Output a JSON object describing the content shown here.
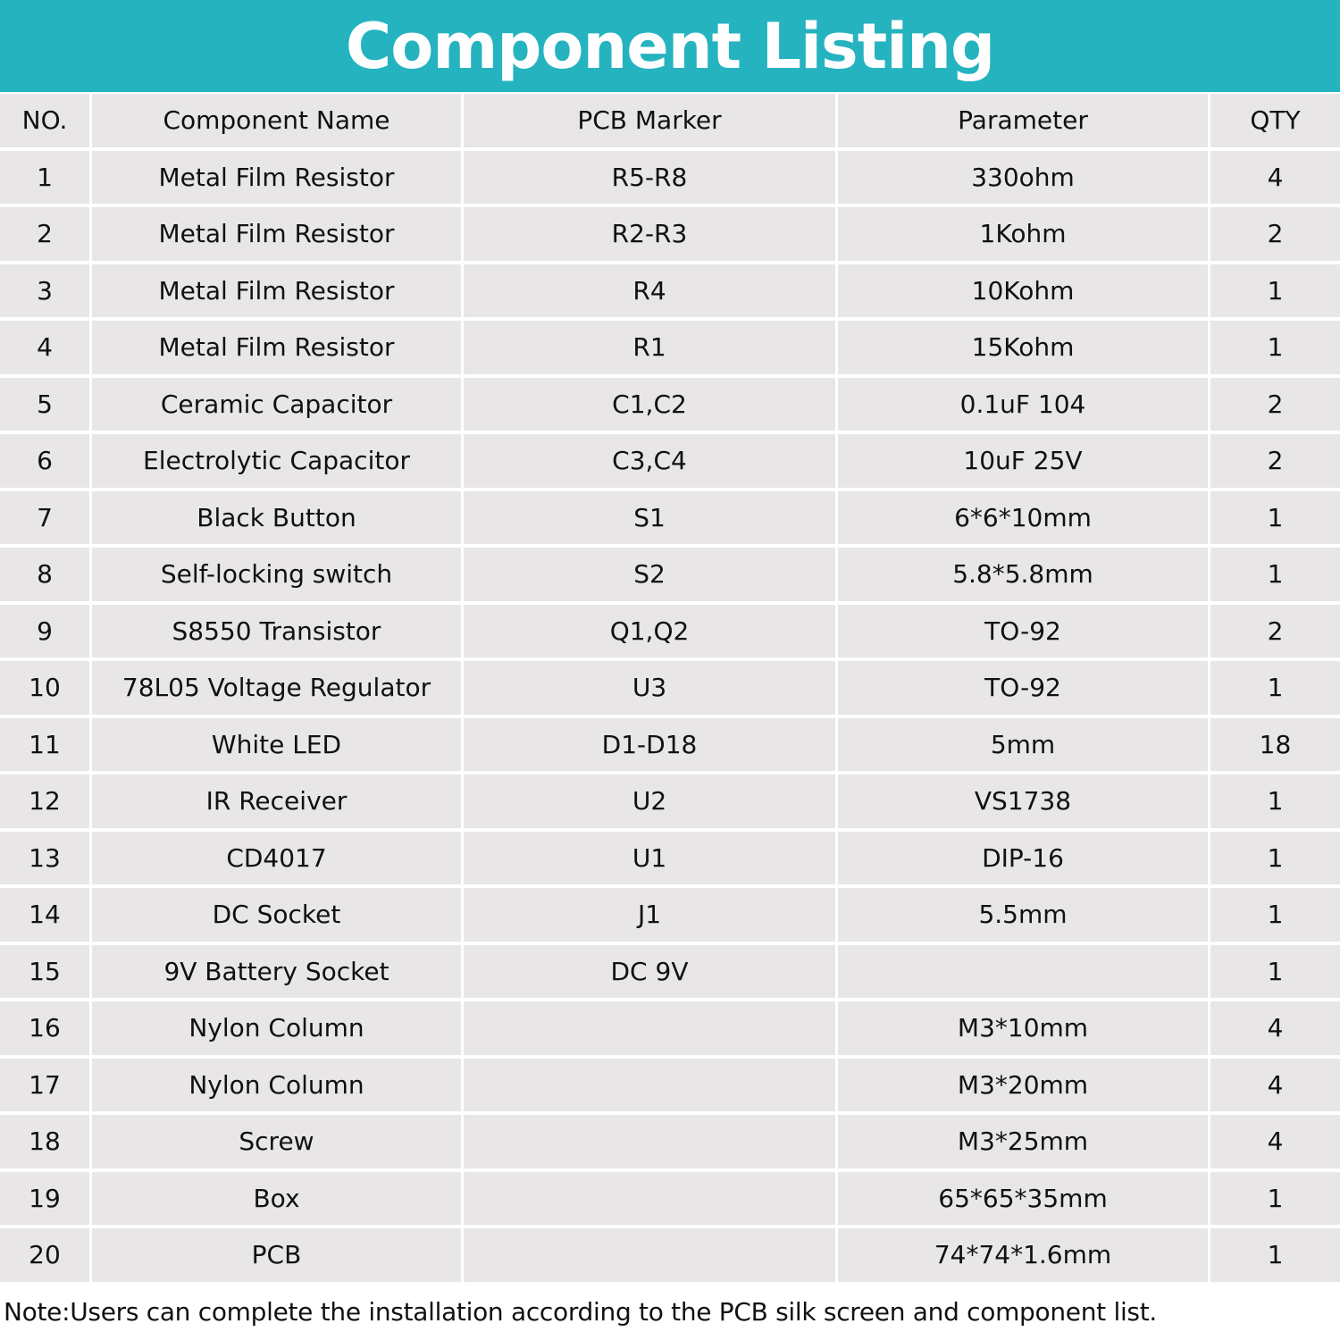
{
  "header": {
    "title": "Component Listing"
  },
  "table": {
    "columns": [
      "NO.",
      "Component Name",
      "PCB Marker",
      "Parameter",
      "QTY"
    ],
    "rows": [
      [
        "1",
        "Metal Film Resistor",
        "R5-R8",
        "330ohm",
        "4"
      ],
      [
        "2",
        "Metal Film Resistor",
        "R2-R3",
        "1Kohm",
        "2"
      ],
      [
        "3",
        "Metal Film Resistor",
        "R4",
        "10Kohm",
        "1"
      ],
      [
        "4",
        "Metal Film Resistor",
        "R1",
        "15Kohm",
        "1"
      ],
      [
        "5",
        "Ceramic Capacitor",
        "C1,C2",
        "0.1uF 104",
        "2"
      ],
      [
        "6",
        "Electrolytic Capacitor",
        "C3,C4",
        "10uF 25V",
        "2"
      ],
      [
        "7",
        "Black Button",
        "S1",
        "6*6*10mm",
        "1"
      ],
      [
        "8",
        "Self-locking switch",
        "S2",
        "5.8*5.8mm",
        "1"
      ],
      [
        "9",
        "S8550 Transistor",
        "Q1,Q2",
        "TO-92",
        "2"
      ],
      [
        "10",
        "78L05 Voltage Regulator",
        "U3",
        "TO-92",
        "1"
      ],
      [
        "11",
        "White LED",
        "D1-D18",
        "5mm",
        "18"
      ],
      [
        "12",
        "IR Receiver",
        "U2",
        "VS1738",
        "1"
      ],
      [
        "13",
        "CD4017",
        "U1",
        "DIP-16",
        "1"
      ],
      [
        "14",
        "DC Socket",
        "J1",
        "5.5mm",
        "1"
      ],
      [
        "15",
        "9V Battery Socket",
        "DC 9V",
        null,
        "1"
      ],
      [
        "16",
        "Nylon Column",
        null,
        "M3*10mm",
        "4"
      ],
      [
        "17",
        "Nylon Column",
        null,
        "M3*20mm",
        "4"
      ],
      [
        "18",
        "Screw",
        null,
        "M3*25mm",
        "4"
      ],
      [
        "19",
        "Box",
        null,
        "65*65*35mm",
        "1"
      ],
      [
        "20",
        "PCB",
        null,
        "74*74*1.6mm",
        "1"
      ]
    ]
  },
  "note": "Note:Users can complete the installation according to the PCB silk screen and component list."
}
